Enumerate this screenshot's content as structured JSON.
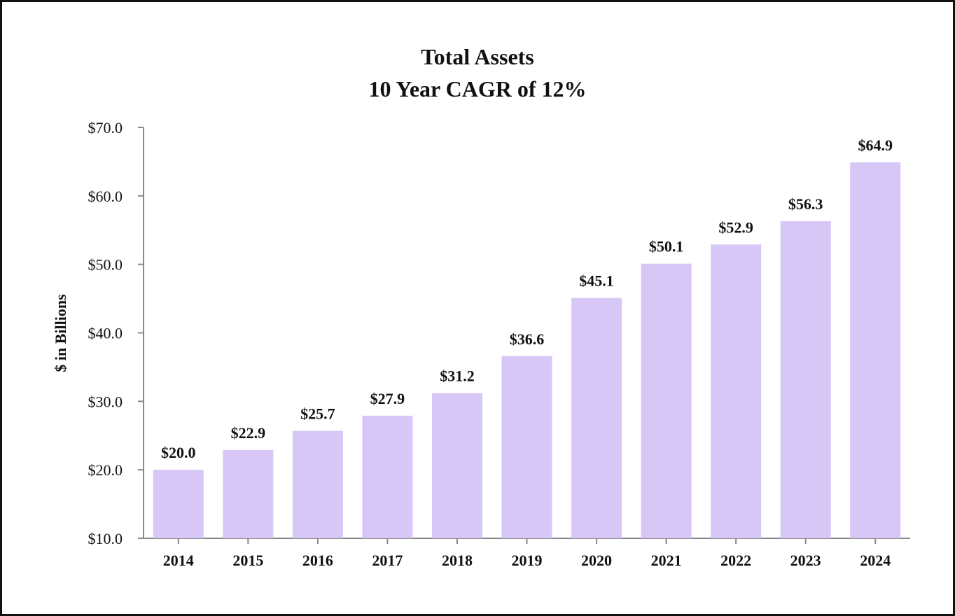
{
  "chart_data": {
    "type": "bar",
    "title": "Total Assets",
    "subtitle": "10 Year CAGR of 12%",
    "xlabel": "",
    "ylabel": "$ in Billions",
    "categories": [
      "2014",
      "2015",
      "2016",
      "2017",
      "2018",
      "2019",
      "2020",
      "2021",
      "2022",
      "2023",
      "2024"
    ],
    "values": [
      20.0,
      22.9,
      25.7,
      27.9,
      31.2,
      36.6,
      45.1,
      50.1,
      52.9,
      56.3,
      64.9
    ],
    "data_labels": [
      "$20.0",
      "$22.9",
      "$25.7",
      "$27.9",
      "$31.2",
      "$36.6",
      "$45.1",
      "$50.1",
      "$52.9",
      "$56.3",
      "$64.9"
    ],
    "yticks": [
      10,
      20,
      30,
      40,
      50,
      60,
      70
    ],
    "ytick_labels": [
      "$10.0",
      "$20.0",
      "$30.0",
      "$40.0",
      "$50.0",
      "$60.0",
      "$70.0"
    ],
    "ylim": [
      10,
      70
    ],
    "grid": false,
    "legend": "none",
    "colors": {
      "bar": "#d7c7f7",
      "axis": "#888888",
      "text": "#111111",
      "border": "#111111"
    }
  }
}
